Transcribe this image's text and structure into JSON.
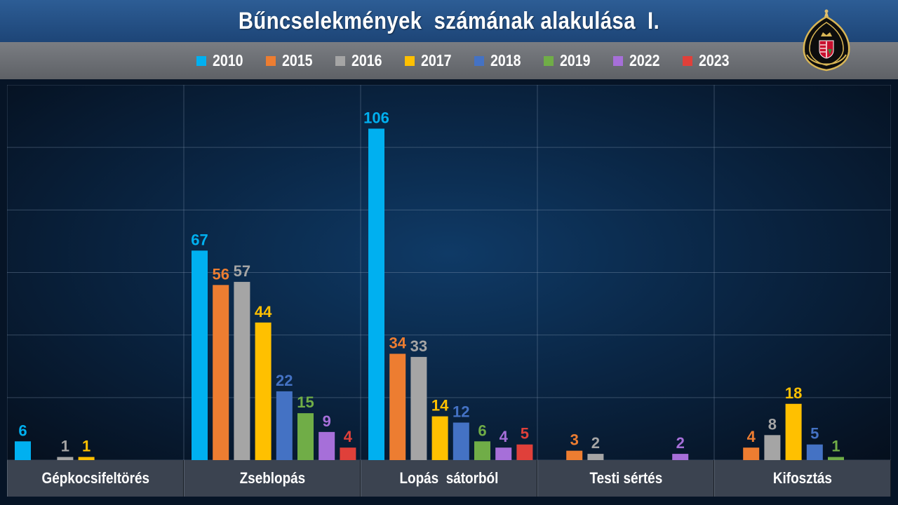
{
  "header": {
    "title": "Bűncselekmények  számának alakulása  I."
  },
  "emblem": "police-emblem-icon",
  "colors": {
    "2010": "#00b0f0",
    "2015": "#ed7d31",
    "2016": "#a5a5a5",
    "2017": "#ffc000",
    "2018": "#4472c4",
    "2019": "#70ad47",
    "2022": "#a66fd9",
    "2023": "#e0403a"
  },
  "chart_data": {
    "type": "bar",
    "title": "Bűncselekmények  számának alakulása  I.",
    "categories": [
      "Gépkocsifeltörés",
      "Zseblopás",
      "Lopás  sátorból",
      "Testi sértés",
      "Kifosztás"
    ],
    "series": [
      {
        "name": "2010",
        "values": [
          6,
          67,
          106,
          null,
          null
        ]
      },
      {
        "name": "2015",
        "values": [
          null,
          56,
          34,
          3,
          4
        ]
      },
      {
        "name": "2016",
        "values": [
          1,
          57,
          33,
          2,
          8
        ]
      },
      {
        "name": "2017",
        "values": [
          1,
          44,
          14,
          null,
          18
        ]
      },
      {
        "name": "2018",
        "values": [
          null,
          22,
          12,
          null,
          5
        ]
      },
      {
        "name": "2019",
        "values": [
          null,
          15,
          6,
          null,
          1
        ]
      },
      {
        "name": "2022",
        "values": [
          null,
          9,
          4,
          2,
          null
        ]
      },
      {
        "name": "2023",
        "values": [
          null,
          4,
          5,
          null,
          null
        ]
      }
    ],
    "ylim": [
      0,
      120
    ],
    "grid": true,
    "legend_position": "top"
  }
}
